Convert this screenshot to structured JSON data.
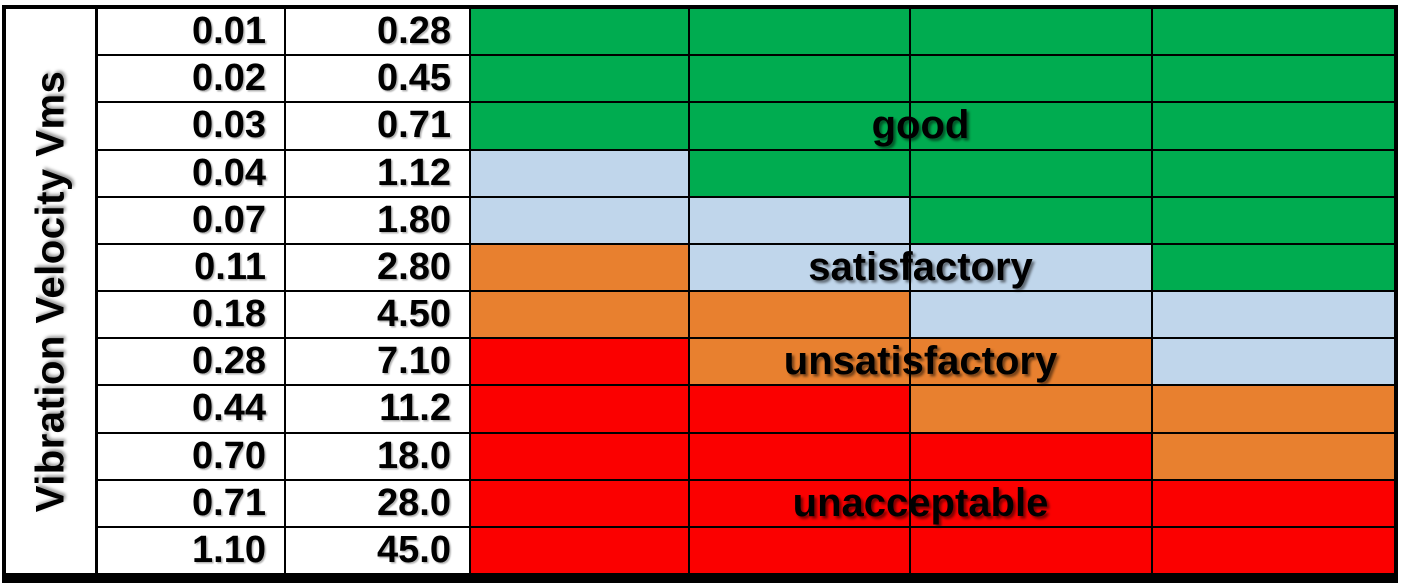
{
  "axis": {
    "y_label": "Vibration Velocity Vms"
  },
  "zones": {
    "good": {
      "label": "good",
      "color": "#00AC50"
    },
    "satisfactory": {
      "label": "satisfactory",
      "color": "#C0D6EB"
    },
    "unsatisfactory": {
      "label": "unsatisfactory",
      "color": "#E8802F"
    },
    "unacceptable": {
      "label": "unacceptable",
      "color": "#FB0000"
    }
  },
  "zone_labels": [
    {
      "text": "good",
      "row": 3
    },
    {
      "text": "satisfactory",
      "row": 6
    },
    {
      "text": "unsatisfactory",
      "row": 8
    },
    {
      "text": "unacceptable",
      "row": 11
    }
  ],
  "table": {
    "rows": [
      {
        "in_s": "0.01",
        "mm_s": "0.28",
        "zones": [
          "good",
          "good",
          "good",
          "good"
        ]
      },
      {
        "in_s": "0.02",
        "mm_s": "0.45",
        "zones": [
          "good",
          "good",
          "good",
          "good"
        ]
      },
      {
        "in_s": "0.03",
        "mm_s": "0.71",
        "zones": [
          "good",
          "good",
          "good",
          "good"
        ]
      },
      {
        "in_s": "0.04",
        "mm_s": "1.12",
        "zones": [
          "satisfactory",
          "good",
          "good",
          "good"
        ]
      },
      {
        "in_s": "0.07",
        "mm_s": "1.80",
        "zones": [
          "satisfactory",
          "satisfactory",
          "good",
          "good"
        ]
      },
      {
        "in_s": "0.11",
        "mm_s": "2.80",
        "zones": [
          "unsatisfactory",
          "satisfactory",
          "satisfactory",
          "good"
        ]
      },
      {
        "in_s": "0.18",
        "mm_s": "4.50",
        "zones": [
          "unsatisfactory",
          "unsatisfactory",
          "satisfactory",
          "satisfactory"
        ]
      },
      {
        "in_s": "0.28",
        "mm_s": "7.10",
        "zones": [
          "unacceptable",
          "unsatisfactory",
          "unsatisfactory",
          "satisfactory"
        ]
      },
      {
        "in_s": "0.44",
        "mm_s": "11.2",
        "zones": [
          "unacceptable",
          "unacceptable",
          "unsatisfactory",
          "unsatisfactory"
        ]
      },
      {
        "in_s": "0.70",
        "mm_s": "18.0",
        "zones": [
          "unacceptable",
          "unacceptable",
          "unacceptable",
          "unsatisfactory"
        ]
      },
      {
        "in_s": "0.71",
        "mm_s": "28.0",
        "zones": [
          "unacceptable",
          "unacceptable",
          "unacceptable",
          "unacceptable"
        ]
      },
      {
        "in_s": "1.10",
        "mm_s": "45.0",
        "zones": [
          "unacceptable",
          "unacceptable",
          "unacceptable",
          "unacceptable"
        ]
      }
    ]
  },
  "chart_data": {
    "type": "heatmap",
    "title": "",
    "ylabel": "Vibration Velocity Vms",
    "value_columns": [
      [
        0.01,
        0.02,
        0.03,
        0.04,
        0.07,
        0.11,
        0.18,
        0.28,
        0.44,
        0.7,
        0.71,
        1.1
      ],
      [
        0.28,
        0.45,
        0.71,
        1.12,
        1.8,
        2.8,
        4.5,
        7.1,
        11.2,
        18.0,
        28.0,
        45.0
      ]
    ],
    "zone_columns_count": 4,
    "zone_matrix": [
      [
        "good",
        "good",
        "good",
        "good"
      ],
      [
        "good",
        "good",
        "good",
        "good"
      ],
      [
        "good",
        "good",
        "good",
        "good"
      ],
      [
        "satisfactory",
        "good",
        "good",
        "good"
      ],
      [
        "satisfactory",
        "satisfactory",
        "good",
        "good"
      ],
      [
        "unsatisfactory",
        "satisfactory",
        "satisfactory",
        "good"
      ],
      [
        "unsatisfactory",
        "unsatisfactory",
        "satisfactory",
        "satisfactory"
      ],
      [
        "unacceptable",
        "unsatisfactory",
        "unsatisfactory",
        "satisfactory"
      ],
      [
        "unacceptable",
        "unacceptable",
        "unsatisfactory",
        "unsatisfactory"
      ],
      [
        "unacceptable",
        "unacceptable",
        "unacceptable",
        "unsatisfactory"
      ],
      [
        "unacceptable",
        "unacceptable",
        "unacceptable",
        "unacceptable"
      ],
      [
        "unacceptable",
        "unacceptable",
        "unacceptable",
        "unacceptable"
      ]
    ],
    "zone_colors": {
      "good": "#00AC50",
      "satisfactory": "#C0D6EB",
      "unsatisfactory": "#E8802F",
      "unacceptable": "#FB0000"
    },
    "annotations": [
      "good",
      "satisfactory",
      "unsatisfactory",
      "unacceptable"
    ],
    "grid": true,
    "legend": false
  }
}
